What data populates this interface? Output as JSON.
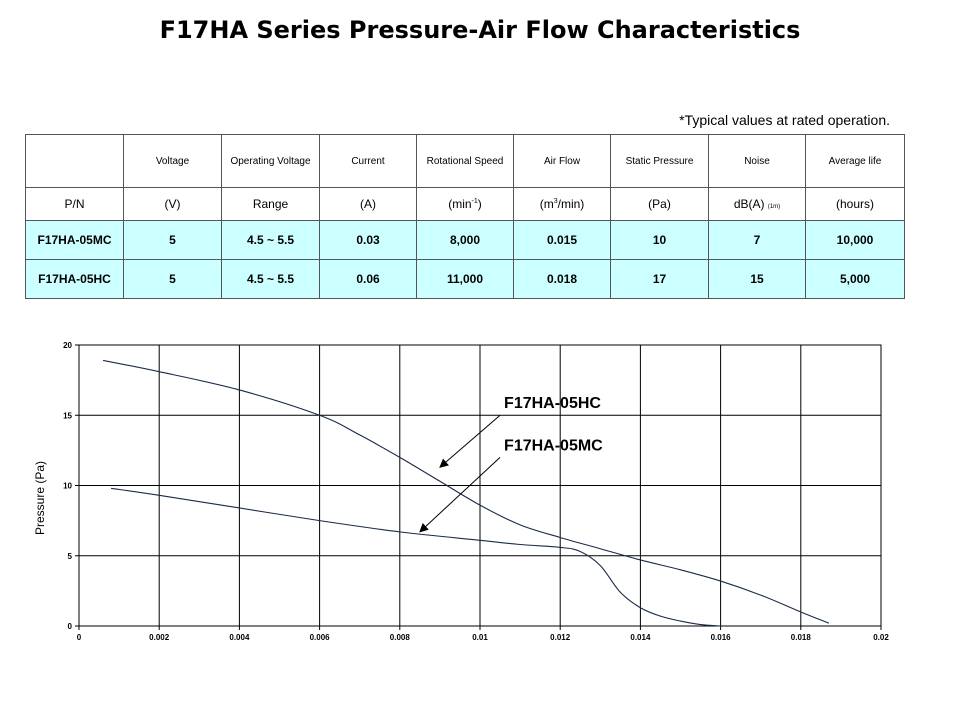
{
  "title": "F17HA Series Pressure-Air Flow Characteristics",
  "footnote": "*Typical values at rated operation.",
  "table": {
    "headers": [
      "",
      "Voltage",
      "Operating Voltage",
      "Current",
      "Rotational Speed",
      "Air Flow",
      "Static Pressure",
      "Noise",
      "Average life"
    ],
    "units": {
      "pn": "P/N",
      "voltage": "(V)",
      "range": "Range",
      "current": "(A)",
      "speed_open": "(min",
      "speed_sup": "-1",
      "speed_close": ")",
      "flow_open": "(m",
      "flow_sup": "3",
      "flow_close": "/min)",
      "pressure": "(Pa)",
      "noise": "dB(A)",
      "noise_small": "(1m)",
      "life": "(hours)"
    },
    "rows": [
      [
        "F17HA-05MC",
        "5",
        "4.5 ~ 5.5",
        "0.03",
        "8,000",
        "0.015",
        "10",
        "7",
        "10,000"
      ],
      [
        "F17HA-05HC",
        "5",
        "4.5 ~ 5.5",
        "0.06",
        "11,000",
        "0.018",
        "17",
        "15",
        "5,000"
      ]
    ]
  },
  "chart_data": {
    "type": "line",
    "ylabel": "Pressure (Pa)",
    "xlabel": "",
    "xlim": [
      0,
      0.02
    ],
    "ylim": [
      0,
      20
    ],
    "xticks": [
      "0",
      "0.002",
      "0.004",
      "0.006",
      "0.008",
      "0.01",
      "0.012",
      "0.014",
      "0.016",
      "0.018",
      "0.02"
    ],
    "yticks": [
      "0",
      "5",
      "10",
      "15",
      "20"
    ],
    "grid": true,
    "series": [
      {
        "name": "F17HA-05HC",
        "x": [
          0.0006,
          0.002,
          0.004,
          0.006,
          0.007,
          0.008,
          0.009,
          0.01,
          0.011,
          0.012,
          0.013,
          0.014,
          0.015,
          0.016,
          0.017,
          0.018,
          0.0187
        ],
        "y": [
          18.9,
          18.1,
          16.8,
          15.0,
          13.6,
          12.0,
          10.3,
          8.6,
          7.2,
          6.3,
          5.5,
          4.7,
          4.0,
          3.2,
          2.2,
          1.0,
          0.2
        ]
      },
      {
        "name": "F17HA-05MC",
        "x": [
          0.0008,
          0.002,
          0.004,
          0.006,
          0.008,
          0.01,
          0.011,
          0.012,
          0.0125,
          0.013,
          0.0135,
          0.014,
          0.0145,
          0.015,
          0.0155,
          0.016
        ],
        "y": [
          9.8,
          9.3,
          8.4,
          7.5,
          6.7,
          6.1,
          5.8,
          5.6,
          5.3,
          4.3,
          2.4,
          1.3,
          0.7,
          0.35,
          0.1,
          0.0
        ]
      }
    ],
    "annotations": [
      {
        "text": "F17HA-05HC",
        "series": 0,
        "arrow_to": [
          0.009,
          11.3
        ],
        "label_at": [
          0.0106,
          15.5
        ]
      },
      {
        "text": "F17HA-05MC",
        "series": 1,
        "arrow_to": [
          0.0085,
          6.7
        ],
        "label_at": [
          0.0106,
          12.5
        ]
      }
    ]
  }
}
